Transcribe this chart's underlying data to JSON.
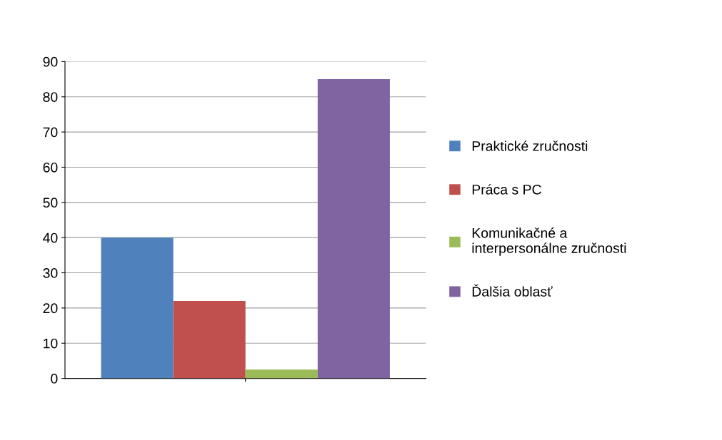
{
  "chart_data": {
    "type": "bar",
    "categories": [
      null
    ],
    "series": [
      {
        "name": "Praktické zručnosti",
        "color": "#4f81bd",
        "values": [
          40
        ]
      },
      {
        "name": "Práca s PC",
        "color": "#c0504d",
        "values": [
          22
        ]
      },
      {
        "name": "Komunikačné a interpersonálne zručnosti",
        "color": "#9bbb59",
        "values": [
          2.5
        ]
      },
      {
        "name": "Ďalšia oblasť",
        "color": "#8064a2",
        "values": [
          85
        ]
      }
    ],
    "ylim": [
      0,
      90
    ],
    "yticks": [
      0,
      10,
      20,
      30,
      40,
      50,
      60,
      70,
      80,
      90
    ],
    "grid": "y",
    "legend": "right"
  }
}
